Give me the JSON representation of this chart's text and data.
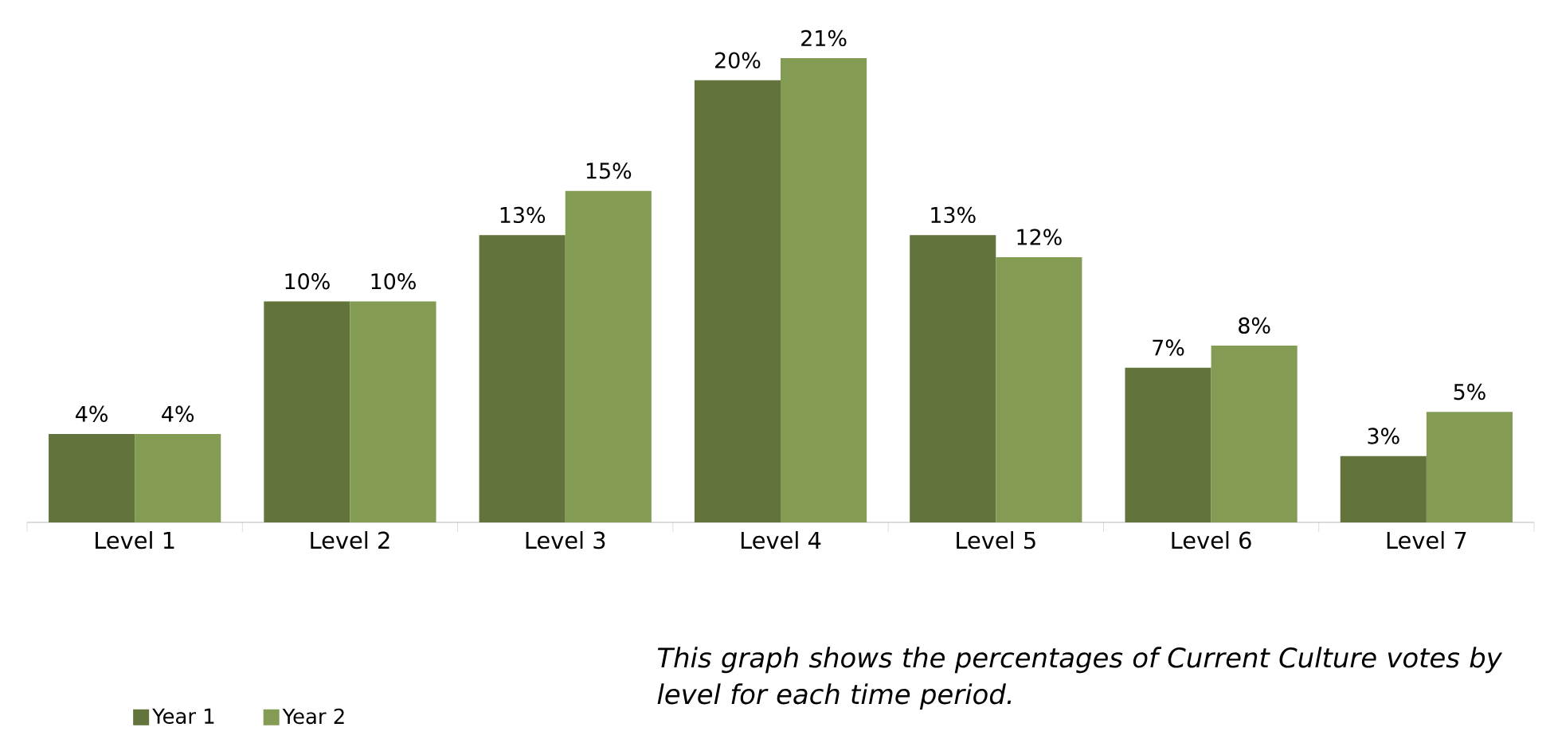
{
  "chart_data": {
    "type": "bar",
    "categories": [
      "Level 1",
      "Level 2",
      "Level 3",
      "Level 4",
      "Level 5",
      "Level 6",
      "Level 7"
    ],
    "series": [
      {
        "name": "Year 1",
        "color": "#62733b",
        "values": [
          4,
          10,
          13,
          20,
          13,
          7,
          3
        ],
        "value_labels": [
          "4%",
          "10%",
          "13%",
          "20%",
          "13%",
          "7%",
          "3%"
        ]
      },
      {
        "name": "Year 2",
        "color": "#839b53",
        "values": [
          4,
          10,
          15,
          21,
          12,
          8,
          5
        ],
        "value_labels": [
          "4%",
          "10%",
          "15%",
          "21%",
          "12%",
          "8%",
          "5%"
        ]
      }
    ],
    "annotations": [
      "This graph shows the percentages of Current Culture votes by level for each time period."
    ],
    "legend": "bottom left",
    "tick_labels": "x"
  }
}
